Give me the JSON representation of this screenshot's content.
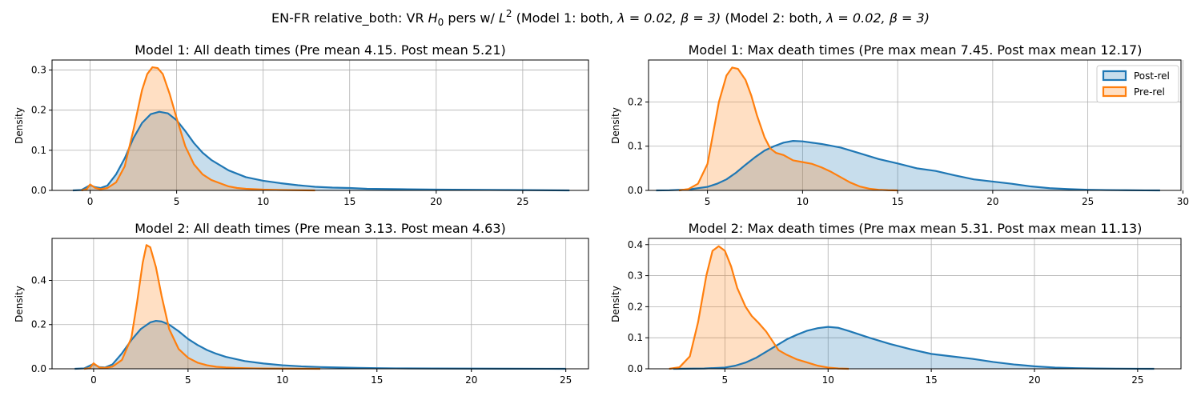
{
  "figure": {
    "title_prefix": "EN-FR relative_both: VR ",
    "title_h": "H",
    "title_h_sub": "0",
    "title_mid": " pers w/ ",
    "title_l": "L",
    "title_l_sup": "2",
    "title_m1": " (Model 1: both, ",
    "title_m2": " (Model 2: both, ",
    "lambda_text": "λ = 0.02, ",
    "beta_text": "β = 3)"
  },
  "colors": {
    "post": "#1f77b4",
    "pre": "#ff7f0e"
  },
  "legend": {
    "items": [
      "Post-rel",
      "Pre-rel"
    ]
  },
  "chart_data": [
    {
      "type": "area",
      "title": "Model 1: All death times (Pre mean 4.15. Post mean 5.21)",
      "xlabel": "",
      "ylabel": "Density",
      "xlim": [
        -2.2,
        28.8
      ],
      "ylim": [
        0,
        0.325
      ],
      "xticks": [
        0,
        5,
        10,
        15,
        20,
        25
      ],
      "yticks": [
        0.0,
        0.1,
        0.2,
        0.3
      ],
      "ytick_labels": [
        "0.0",
        "0.1",
        "0.2",
        "0.3"
      ],
      "grid": true,
      "series": [
        {
          "name": "Post-rel",
          "x": [
            -1,
            -0.5,
            0,
            0.3,
            0.6,
            1,
            1.5,
            2,
            2.5,
            3,
            3.5,
            4,
            4.5,
            5,
            5.5,
            6,
            6.5,
            7,
            8,
            9,
            10,
            11,
            12,
            13,
            14,
            15,
            16,
            18,
            20,
            22,
            24,
            26,
            27.7
          ],
          "y": [
            0,
            0.001,
            0.013,
            0.008,
            0.006,
            0.012,
            0.04,
            0.08,
            0.13,
            0.168,
            0.19,
            0.196,
            0.192,
            0.175,
            0.148,
            0.118,
            0.094,
            0.076,
            0.05,
            0.033,
            0.024,
            0.018,
            0.013,
            0.009,
            0.007,
            0.006,
            0.004,
            0.003,
            0.002,
            0.0015,
            0.001,
            0.0005,
            0
          ]
        },
        {
          "name": "Pre-rel",
          "x": [
            -0.5,
            -0.2,
            0,
            0.3,
            0.6,
            1,
            1.5,
            2,
            2.5,
            3,
            3.3,
            3.6,
            3.9,
            4.2,
            4.6,
            5,
            5.5,
            6,
            6.5,
            7,
            7.5,
            8,
            8.5,
            9,
            10,
            11,
            12,
            13
          ],
          "y": [
            0,
            0.003,
            0.015,
            0.006,
            0.003,
            0.006,
            0.02,
            0.06,
            0.15,
            0.25,
            0.29,
            0.307,
            0.305,
            0.29,
            0.24,
            0.18,
            0.11,
            0.065,
            0.04,
            0.026,
            0.018,
            0.01,
            0.006,
            0.004,
            0.002,
            0.001,
            0.0005,
            0
          ]
        }
      ]
    },
    {
      "type": "area",
      "title": "Model 1: Max death times (Pre max mean 7.45. Post max mean 12.17)",
      "xlabel": "",
      "ylabel": "Density",
      "xlim": [
        1.9,
        29.9
      ],
      "ylim": [
        0,
        0.295
      ],
      "xticks": [
        5,
        10,
        15,
        20,
        25,
        30
      ],
      "yticks": [
        0.0,
        0.1,
        0.2
      ],
      "ytick_labels": [
        "0.0",
        "0.1",
        "0.2"
      ],
      "grid": true,
      "legend": "top-right",
      "series": [
        {
          "name": "Post-rel",
          "x": [
            2.3,
            3,
            4,
            5,
            5.5,
            6,
            6.5,
            7,
            7.5,
            8,
            8.5,
            9,
            9.5,
            10,
            11,
            12,
            13,
            14,
            15,
            16,
            17,
            18,
            19,
            20,
            21,
            22,
            23,
            24,
            25,
            26,
            27,
            28,
            28.8
          ],
          "y": [
            0,
            0.0003,
            0.002,
            0.008,
            0.015,
            0.025,
            0.04,
            0.058,
            0.075,
            0.09,
            0.1,
            0.108,
            0.112,
            0.111,
            0.105,
            0.097,
            0.084,
            0.071,
            0.061,
            0.05,
            0.044,
            0.034,
            0.025,
            0.02,
            0.015,
            0.009,
            0.005,
            0.003,
            0.0015,
            0.0008,
            0.0004,
            0.0001,
            0
          ]
        },
        {
          "name": "Pre-rel",
          "x": [
            3.5,
            4,
            4.5,
            5,
            5.3,
            5.6,
            6,
            6.3,
            6.6,
            7,
            7.3,
            7.6,
            8,
            8.3,
            8.6,
            9,
            9.5,
            10,
            10.5,
            11,
            11.5,
            12,
            12.5,
            13,
            13.5,
            14,
            14.5,
            15
          ],
          "y": [
            0,
            0.003,
            0.015,
            0.06,
            0.13,
            0.2,
            0.26,
            0.278,
            0.275,
            0.25,
            0.215,
            0.17,
            0.12,
            0.095,
            0.085,
            0.08,
            0.068,
            0.064,
            0.06,
            0.052,
            0.042,
            0.03,
            0.018,
            0.009,
            0.004,
            0.0015,
            0.0005,
            0
          ]
        }
      ]
    },
    {
      "type": "area",
      "title": "Model 2: All death times (Pre mean 3.13. Post mean 4.63)",
      "xlabel": "",
      "ylabel": "Density",
      "xlim": [
        -2.2,
        26.2
      ],
      "ylim": [
        0,
        0.59
      ],
      "xticks": [
        0,
        5,
        10,
        15,
        20,
        25
      ],
      "yticks": [
        0.0,
        0.2,
        0.4
      ],
      "ytick_labels": [
        "0.0",
        "0.2",
        "0.4"
      ],
      "grid": true,
      "series": [
        {
          "name": "Post-rel",
          "x": [
            -1,
            -0.5,
            0,
            0.3,
            0.6,
            1,
            1.5,
            2,
            2.5,
            3,
            3.3,
            3.6,
            4,
            4.5,
            5,
            5.5,
            6,
            6.5,
            7,
            8,
            9,
            10,
            11,
            12,
            13,
            14,
            15,
            16,
            18,
            20,
            22,
            24,
            25
          ],
          "y": [
            0,
            0.002,
            0.022,
            0.008,
            0.006,
            0.02,
            0.07,
            0.13,
            0.18,
            0.21,
            0.217,
            0.214,
            0.2,
            0.17,
            0.135,
            0.108,
            0.085,
            0.068,
            0.054,
            0.035,
            0.024,
            0.016,
            0.011,
            0.008,
            0.006,
            0.004,
            0.003,
            0.002,
            0.0015,
            0.001,
            0.0005,
            0.0002,
            0
          ]
        },
        {
          "name": "Pre-rel",
          "x": [
            -0.5,
            -0.2,
            0,
            0.3,
            0.6,
            1,
            1.5,
            2,
            2.3,
            2.6,
            2.8,
            3,
            3.3,
            3.6,
            4,
            4.5,
            5,
            5.5,
            6,
            6.5,
            7,
            7.5,
            8,
            8.5,
            9,
            10,
            11,
            12
          ],
          "y": [
            0,
            0.003,
            0.025,
            0.006,
            0.004,
            0.01,
            0.04,
            0.14,
            0.3,
            0.48,
            0.56,
            0.55,
            0.46,
            0.33,
            0.18,
            0.09,
            0.05,
            0.028,
            0.016,
            0.009,
            0.006,
            0.004,
            0.003,
            0.002,
            0.0015,
            0.001,
            0.0005,
            0
          ]
        }
      ]
    },
    {
      "type": "area",
      "title": "Model 2: Max death times (Pre max mean 5.31. Post max mean 11.13)",
      "xlabel": "",
      "ylabel": "Density",
      "xlim": [
        1.3,
        27.1
      ],
      "ylim": [
        0,
        0.42
      ],
      "xticks": [
        5,
        10,
        15,
        20,
        25
      ],
      "yticks": [
        0.0,
        0.1,
        0.2,
        0.3,
        0.4
      ],
      "ytick_labels": [
        "0.0",
        "0.1",
        "0.2",
        "0.3",
        "0.4"
      ],
      "grid": true,
      "series": [
        {
          "name": "Post-rel",
          "x": [
            2.5,
            3,
            4,
            5,
            5.5,
            6,
            6.5,
            7,
            7.5,
            8,
            8.5,
            9,
            9.5,
            10,
            10.5,
            11,
            12,
            13,
            14,
            15,
            16,
            17,
            18,
            19,
            20,
            21,
            22,
            23,
            24,
            25,
            25.8
          ],
          "y": [
            0,
            0.0003,
            0.001,
            0.004,
            0.01,
            0.02,
            0.035,
            0.055,
            0.075,
            0.095,
            0.11,
            0.123,
            0.131,
            0.135,
            0.132,
            0.122,
            0.1,
            0.08,
            0.063,
            0.048,
            0.04,
            0.032,
            0.022,
            0.014,
            0.008,
            0.004,
            0.002,
            0.001,
            0.0005,
            0.0002,
            0
          ]
        },
        {
          "name": "Pre-rel",
          "x": [
            2.3,
            2.8,
            3.3,
            3.7,
            4.1,
            4.4,
            4.7,
            5,
            5.3,
            5.6,
            6,
            6.3,
            6.6,
            7,
            7.3,
            7.6,
            8,
            8.5,
            9,
            9.5,
            10,
            10.5,
            11
          ],
          "y": [
            0,
            0.005,
            0.04,
            0.15,
            0.3,
            0.38,
            0.395,
            0.38,
            0.33,
            0.26,
            0.2,
            0.17,
            0.15,
            0.12,
            0.09,
            0.06,
            0.045,
            0.03,
            0.02,
            0.01,
            0.004,
            0.001,
            0
          ]
        }
      ]
    }
  ]
}
